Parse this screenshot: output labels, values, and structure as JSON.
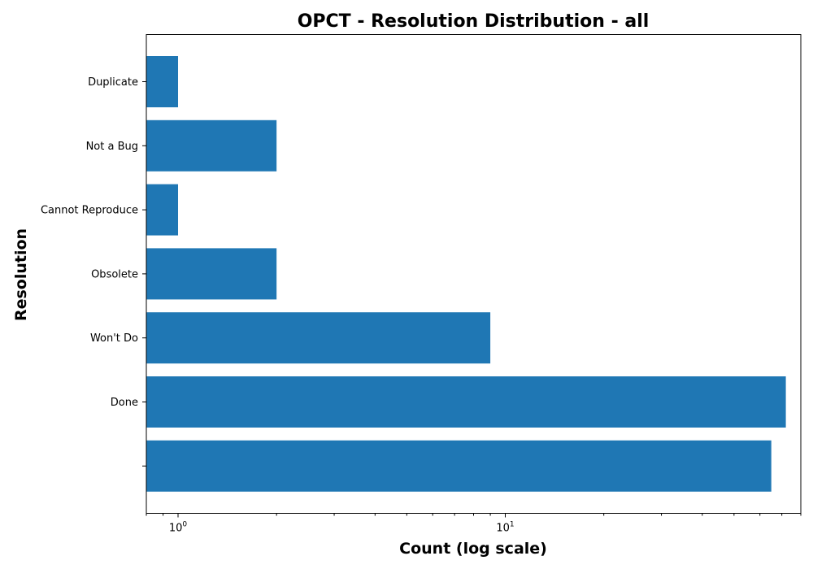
{
  "chart_data": {
    "type": "bar",
    "orientation": "horizontal",
    "title": "OPCT - Resolution Distribution - all",
    "xlabel": "Count (log scale)",
    "ylabel": "Resolution",
    "xscale": "log",
    "xlim": [
      0.8,
      80
    ],
    "categories": [
      "Duplicate",
      "Not a Bug",
      "Cannot Reproduce",
      "Obsolete",
      "Won't Do",
      "Done",
      ""
    ],
    "values": [
      1,
      2,
      1,
      2,
      9,
      72,
      65
    ],
    "x_major_ticks": [
      {
        "value": 1,
        "base": "10",
        "exp": "0"
      },
      {
        "value": 10,
        "base": "10",
        "exp": "1"
      }
    ],
    "bar_color": "#1f77b4",
    "grid": false
  }
}
